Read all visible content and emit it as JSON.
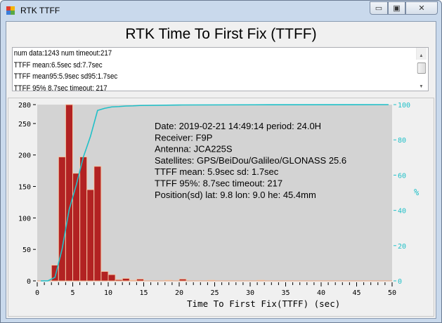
{
  "window": {
    "title": "RTK TTFF",
    "icon": "app-icon",
    "controls": [
      "minimize-icon",
      "maximize-icon",
      "close-icon"
    ]
  },
  "heading": "RTK Time To First Fix (TTFF)",
  "log": [
    "num data:1243   num timeout:217",
    "TTFF   mean:6.5sec    sd:7.7sec",
    "TTFF   mean95:5.9sec    sd95:1.7sec",
    "TTFF   95%  8.7sec    timeout: 217"
  ],
  "colors": {
    "bar": "#b22222",
    "cdf": "#20c0c8",
    "plot_bg": "#d3d3d3"
  },
  "info": [
    "Date:  2019-02-21 14:49:14  period: 24.0H",
    "Receiver:  F9P",
    "Antenna:  JCA225S",
    "Satellites:  GPS/BeiDou/Galileo/GLONASS 25.6",
    "TTFF    mean: 5.9sec   sd: 1.7sec",
    "TTFF  95%: 8.7sec   timeout: 217",
    "Position(sd)   lat: 9.8  lon: 9.0  he: 45.4mm"
  ],
  "chart_data": {
    "type": "bar",
    "xlabel": "Time To First Fix(TTFF) (sec)",
    "ylabel": "",
    "y2label": "%",
    "xlim": [
      0,
      50
    ],
    "ylim": [
      0,
      280
    ],
    "y2lim": [
      0,
      100
    ],
    "xticks": [
      0,
      5,
      10,
      15,
      20,
      25,
      30,
      35,
      40,
      45,
      50
    ],
    "yticks": [
      0,
      50,
      100,
      150,
      200,
      250,
      280
    ],
    "y2ticks": [
      0,
      20,
      40,
      60,
      80,
      100
    ],
    "bins": [
      [
        2,
        25
      ],
      [
        3,
        197
      ],
      [
        4,
        280
      ],
      [
        5,
        171
      ],
      [
        6,
        197
      ],
      [
        7,
        145
      ],
      [
        8,
        182
      ],
      [
        9,
        15
      ],
      [
        10,
        10
      ],
      [
        11,
        2
      ],
      [
        12,
        4
      ],
      [
        13,
        1
      ],
      [
        14,
        3
      ],
      [
        18,
        1
      ],
      [
        20,
        3
      ],
      [
        24,
        1
      ],
      [
        31,
        1
      ]
    ],
    "cumulative_percent": {
      "x": [
        0.5,
        1.5,
        2.5,
        3.5,
        4.5,
        5.5,
        6.5,
        7.5,
        8.5,
        9.5,
        10.5,
        11.5,
        12.5,
        13.5,
        14.5,
        20.5,
        30.5,
        49.5
      ],
      "y": [
        0,
        0,
        2,
        18,
        40.5,
        54.4,
        70.3,
        82,
        96.7,
        97.9,
        98.7,
        98.9,
        99.2,
        99.3,
        99.5,
        99.8,
        99.9,
        100
      ]
    }
  }
}
